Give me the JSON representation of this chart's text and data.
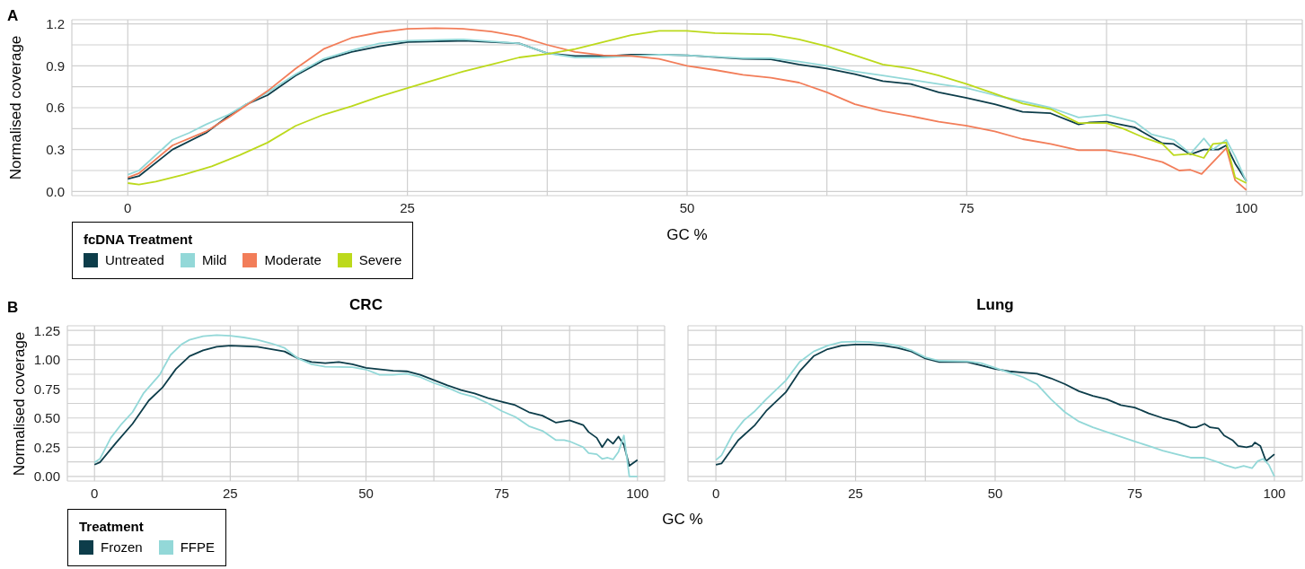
{
  "chart_data": [
    {
      "type": "line",
      "annotations": [
        "A"
      ],
      "xlabel": "GC %",
      "ylabel": "Normalised coverage",
      "legend_title": "fcDNA Treatment",
      "legend": "bottom left",
      "grid": true,
      "xlim": [
        -5,
        105
      ],
      "xticks": [
        0,
        {
          "value": 12.5,
          "label": null
        },
        25,
        {
          "value": 37.5,
          "label": null
        },
        50,
        {
          "value": 62.5,
          "label": null
        },
        75,
        {
          "value": 87.5,
          "label": null
        },
        100
      ],
      "ylim": [
        -0.03,
        1.23
      ],
      "yticks": [
        {
          "value": 0,
          "label": "0.0"
        },
        {
          "value": 0.15,
          "label": null
        },
        {
          "value": 0.3,
          "label": "0.3"
        },
        {
          "value": 0.45,
          "label": null
        },
        {
          "value": 0.6,
          "label": "0.6"
        },
        {
          "value": 0.75,
          "label": null
        },
        {
          "value": 0.9,
          "label": "0.9"
        },
        {
          "value": 1.05,
          "label": null
        },
        {
          "value": 1.2,
          "label": "1.2"
        }
      ],
      "series": [
        {
          "name": "Untreated",
          "color": "#0d3d4a",
          "x": [
            0,
            1,
            4,
            7,
            9,
            10.5,
            12.5,
            15,
            17.5,
            20,
            22.5,
            25,
            30,
            35,
            37.5,
            40,
            43,
            45,
            47.5,
            50,
            55,
            57.5,
            60,
            62.5,
            65,
            67.5,
            70,
            72.5,
            75,
            77.5,
            80,
            82.5,
            85,
            86,
            87.5,
            90,
            92.5,
            93.5,
            95,
            96.2,
            97.5,
            98.2,
            99,
            100
          ],
          "values": [
            0.09,
            0.11,
            0.3,
            0.42,
            0.54,
            0.62,
            0.69,
            0.83,
            0.94,
            1.0,
            1.04,
            1.07,
            1.08,
            1.06,
            0.99,
            0.97,
            0.97,
            0.98,
            0.98,
            0.975,
            0.95,
            0.946,
            0.91,
            0.88,
            0.84,
            0.79,
            0.77,
            0.71,
            0.67,
            0.625,
            0.57,
            0.56,
            0.48,
            0.495,
            0.5,
            0.46,
            0.345,
            0.34,
            0.265,
            0.3,
            0.3,
            0.33,
            0.2,
            0.075
          ]
        },
        {
          "name": "Mild",
          "color": "#93d8d8",
          "x": [
            0,
            1,
            4,
            5.5,
            7,
            9,
            10.5,
            12.5,
            15,
            17.5,
            20,
            22.5,
            25,
            30,
            35,
            37.5,
            40,
            42.5,
            45,
            47.5,
            50,
            55,
            57.5,
            60,
            62.5,
            65,
            67.5,
            70,
            72.5,
            75,
            77.5,
            80,
            82.5,
            85,
            87.5,
            90,
            91.5,
            93.5,
            95,
            96.2,
            97,
            98.2,
            99,
            100
          ],
          "values": [
            0.12,
            0.15,
            0.37,
            0.42,
            0.48,
            0.55,
            0.62,
            0.71,
            0.84,
            0.95,
            1.01,
            1.06,
            1.08,
            1.09,
            1.06,
            0.99,
            0.96,
            0.96,
            0.97,
            0.98,
            0.975,
            0.955,
            0.955,
            0.93,
            0.9,
            0.86,
            0.83,
            0.8,
            0.77,
            0.74,
            0.69,
            0.645,
            0.6,
            0.53,
            0.55,
            0.5,
            0.41,
            0.37,
            0.27,
            0.38,
            0.3,
            0.37,
            0.25,
            0.07
          ]
        },
        {
          "name": "Moderate",
          "color": "#f27d59",
          "x": [
            0,
            1,
            4,
            7,
            9,
            12.5,
            15,
            17.5,
            20,
            22.5,
            25,
            27.5,
            30,
            32.5,
            35,
            37.5,
            40,
            42.5,
            45,
            47.5,
            50,
            52.5,
            55,
            57.5,
            60,
            62.5,
            65,
            67.5,
            70,
            72.5,
            75,
            77.5,
            80,
            82.5,
            85,
            87.5,
            90,
            92.5,
            94,
            95,
            96,
            98.2,
            99,
            100
          ],
          "values": [
            0.1,
            0.13,
            0.33,
            0.43,
            0.53,
            0.72,
            0.88,
            1.02,
            1.1,
            1.14,
            1.165,
            1.17,
            1.165,
            1.145,
            1.11,
            1.05,
            1.0,
            0.975,
            0.97,
            0.95,
            0.9,
            0.87,
            0.835,
            0.815,
            0.78,
            0.71,
            0.625,
            0.575,
            0.54,
            0.5,
            0.47,
            0.43,
            0.375,
            0.34,
            0.295,
            0.295,
            0.26,
            0.21,
            0.15,
            0.155,
            0.125,
            0.31,
            0.08,
            0.01
          ]
        },
        {
          "name": "Severe",
          "color": "#bcd91c",
          "x": [
            0,
            1,
            2.5,
            5,
            7.5,
            10,
            12.5,
            15,
            17.5,
            20,
            22.5,
            25,
            27.5,
            30,
            32.5,
            35,
            37.5,
            40,
            42.5,
            45,
            47.5,
            50,
            52.5,
            55,
            57.5,
            60,
            62.5,
            65,
            67.5,
            70,
            72.5,
            75,
            77.5,
            80,
            82.5,
            85,
            87.5,
            89,
            91,
            92.5,
            93.5,
            95,
            96.2,
            97,
            98.2,
            99,
            100
          ],
          "values": [
            0.06,
            0.05,
            0.07,
            0.12,
            0.18,
            0.26,
            0.35,
            0.47,
            0.55,
            0.61,
            0.68,
            0.74,
            0.8,
            0.86,
            0.91,
            0.96,
            0.985,
            1.02,
            1.07,
            1.12,
            1.15,
            1.15,
            1.135,
            1.13,
            1.125,
            1.09,
            1.04,
            0.975,
            0.91,
            0.88,
            0.83,
            0.77,
            0.7,
            0.63,
            0.59,
            0.49,
            0.49,
            0.45,
            0.38,
            0.34,
            0.26,
            0.27,
            0.24,
            0.34,
            0.35,
            0.1,
            0.06
          ]
        }
      ]
    },
    {
      "type": "line",
      "annotations": [
        "B"
      ],
      "title": "CRC",
      "xlabel": "GC %",
      "ylabel": "Normalised coverage",
      "legend_title": "Treatment",
      "legend": "bottom left",
      "grid": true,
      "xlim": [
        -5,
        105
      ],
      "xticks": [
        0,
        {
          "value": 12.5,
          "label": null
        },
        25,
        {
          "value": 37.5,
          "label": null
        },
        50,
        {
          "value": 62.5,
          "label": null
        },
        75,
        {
          "value": 87.5,
          "label": null
        },
        100
      ],
      "ylim": [
        -0.04,
        1.29
      ],
      "yticks": [
        {
          "value": 0,
          "label": "0.00"
        },
        {
          "value": 0.125,
          "label": null
        },
        {
          "value": 0.25,
          "label": "0.25"
        },
        {
          "value": 0.375,
          "label": null
        },
        {
          "value": 0.5,
          "label": "0.50"
        },
        {
          "value": 0.625,
          "label": null
        },
        {
          "value": 0.75,
          "label": "0.75"
        },
        {
          "value": 0.875,
          "label": null
        },
        {
          "value": 1,
          "label": "1.00"
        },
        {
          "value": 1.125,
          "label": null
        },
        {
          "value": 1.25,
          "label": "1.25"
        }
      ],
      "series": [
        {
          "name": "Frozen",
          "color": "#0d3d4a",
          "x": [
            0,
            1,
            4,
            7,
            10,
            12.5,
            15,
            17.5,
            20,
            22.5,
            25,
            30,
            35,
            37.5,
            40,
            42.5,
            45,
            47.5,
            50,
            55,
            57.5,
            60,
            65,
            67.5,
            70,
            72.5,
            75,
            77.5,
            80,
            82.5,
            85,
            87.5,
            90,
            91,
            92.5,
            93.5,
            94.5,
            95.5,
            96.5,
            97.5,
            98.5,
            100
          ],
          "values": [
            0.1,
            0.12,
            0.29,
            0.45,
            0.65,
            0.76,
            0.92,
            1.03,
            1.08,
            1.11,
            1.12,
            1.11,
            1.07,
            1.01,
            0.98,
            0.97,
            0.98,
            0.96,
            0.93,
            0.905,
            0.9,
            0.87,
            0.78,
            0.74,
            0.71,
            0.67,
            0.64,
            0.61,
            0.55,
            0.52,
            0.46,
            0.48,
            0.44,
            0.38,
            0.33,
            0.25,
            0.32,
            0.28,
            0.34,
            0.27,
            0.09,
            0.14
          ]
        },
        {
          "name": "FFPE",
          "color": "#93d8d8",
          "x": [
            0,
            1,
            3,
            5,
            7,
            9,
            12,
            14,
            16,
            17.5,
            20,
            22.5,
            25,
            27.5,
            30,
            32.5,
            35,
            37.5,
            40,
            42.5,
            47.5,
            50,
            52.5,
            55,
            57.5,
            60,
            62.5,
            65,
            67.5,
            70,
            72.5,
            75,
            77.5,
            80,
            82.5,
            85,
            86.5,
            87.5,
            90,
            91,
            92.5,
            93.5,
            94.5,
            95.5,
            96.5,
            97.5,
            98.5,
            100
          ],
          "values": [
            0.12,
            0.15,
            0.33,
            0.45,
            0.55,
            0.71,
            0.87,
            1.04,
            1.13,
            1.17,
            1.2,
            1.21,
            1.205,
            1.19,
            1.17,
            1.14,
            1.1,
            1.01,
            0.96,
            0.94,
            0.935,
            0.915,
            0.87,
            0.87,
            0.88,
            0.85,
            0.8,
            0.76,
            0.71,
            0.68,
            0.625,
            0.56,
            0.51,
            0.43,
            0.39,
            0.31,
            0.31,
            0.3,
            0.25,
            0.2,
            0.19,
            0.15,
            0.16,
            0.145,
            0.21,
            0.35,
            0,
            0
          ]
        }
      ]
    },
    {
      "type": "line",
      "title": "Lung",
      "tick_labels": "x",
      "grid": true,
      "xlim": [
        -5,
        105
      ],
      "xticks": [
        0,
        {
          "value": 12.5,
          "label": null
        },
        25,
        {
          "value": 37.5,
          "label": null
        },
        50,
        {
          "value": 62.5,
          "label": null
        },
        75,
        {
          "value": 87.5,
          "label": null
        },
        100
      ],
      "ylim": [
        -0.04,
        1.29
      ],
      "yticks": [
        {
          "value": 0,
          "label": null
        },
        {
          "value": 0.125,
          "label": null
        },
        {
          "value": 0.25,
          "label": null
        },
        {
          "value": 0.375,
          "label": null
        },
        {
          "value": 0.5,
          "label": null
        },
        {
          "value": 0.625,
          "label": null
        },
        {
          "value": 0.75,
          "label": null
        },
        {
          "value": 0.875,
          "label": null
        },
        {
          "value": 1,
          "label": null
        },
        {
          "value": 1.125,
          "label": null
        },
        {
          "value": 1.25,
          "label": null
        }
      ],
      "series": [
        {
          "color": "#0d3d4a",
          "x": [
            0,
            1,
            4,
            7,
            9,
            12.5,
            15,
            17.5,
            20,
            22.5,
            25,
            27.5,
            30,
            32.5,
            35,
            37.5,
            40,
            42.5,
            45,
            47.5,
            50,
            52.5,
            55,
            57.5,
            60,
            62.5,
            65,
            67.5,
            70,
            72.5,
            75,
            77.5,
            80,
            82.5,
            85,
            86,
            87.5,
            88.5,
            90,
            91,
            92.5,
            93.5,
            95,
            96,
            96.5,
            97.5,
            98.5,
            100
          ],
          "values": [
            0.1,
            0.11,
            0.31,
            0.44,
            0.56,
            0.72,
            0.9,
            1.03,
            1.09,
            1.12,
            1.13,
            1.13,
            1.12,
            1.1,
            1.07,
            1.01,
            0.98,
            0.98,
            0.98,
            0.95,
            0.92,
            0.9,
            0.89,
            0.88,
            0.84,
            0.79,
            0.73,
            0.69,
            0.66,
            0.61,
            0.59,
            0.54,
            0.5,
            0.47,
            0.42,
            0.42,
            0.45,
            0.42,
            0.41,
            0.35,
            0.31,
            0.26,
            0.25,
            0.26,
            0.29,
            0.26,
            0.13,
            0.19
          ]
        },
        {
          "color": "#93d8d8",
          "x": [
            0,
            1,
            3,
            5,
            7,
            9,
            12.5,
            15,
            17.5,
            20,
            22.5,
            25,
            27.5,
            30,
            32.5,
            35,
            37.5,
            40,
            45,
            47.5,
            50,
            52.5,
            55,
            57.5,
            60,
            62.5,
            65,
            67.5,
            70,
            72.5,
            75,
            77.5,
            80,
            82.5,
            85,
            87.5,
            90,
            91,
            93,
            94.5,
            96,
            97,
            98,
            99,
            100
          ],
          "values": [
            0.14,
            0.18,
            0.36,
            0.48,
            0.56,
            0.66,
            0.82,
            0.98,
            1.07,
            1.12,
            1.15,
            1.155,
            1.15,
            1.14,
            1.12,
            1.08,
            1.02,
            0.99,
            0.985,
            0.97,
            0.93,
            0.89,
            0.85,
            0.79,
            0.66,
            0.55,
            0.47,
            0.42,
            0.38,
            0.34,
            0.3,
            0.26,
            0.22,
            0.19,
            0.16,
            0.16,
            0.12,
            0.1,
            0.07,
            0.09,
            0.07,
            0.13,
            0.15,
            0.1,
            0
          ]
        }
      ]
    }
  ]
}
